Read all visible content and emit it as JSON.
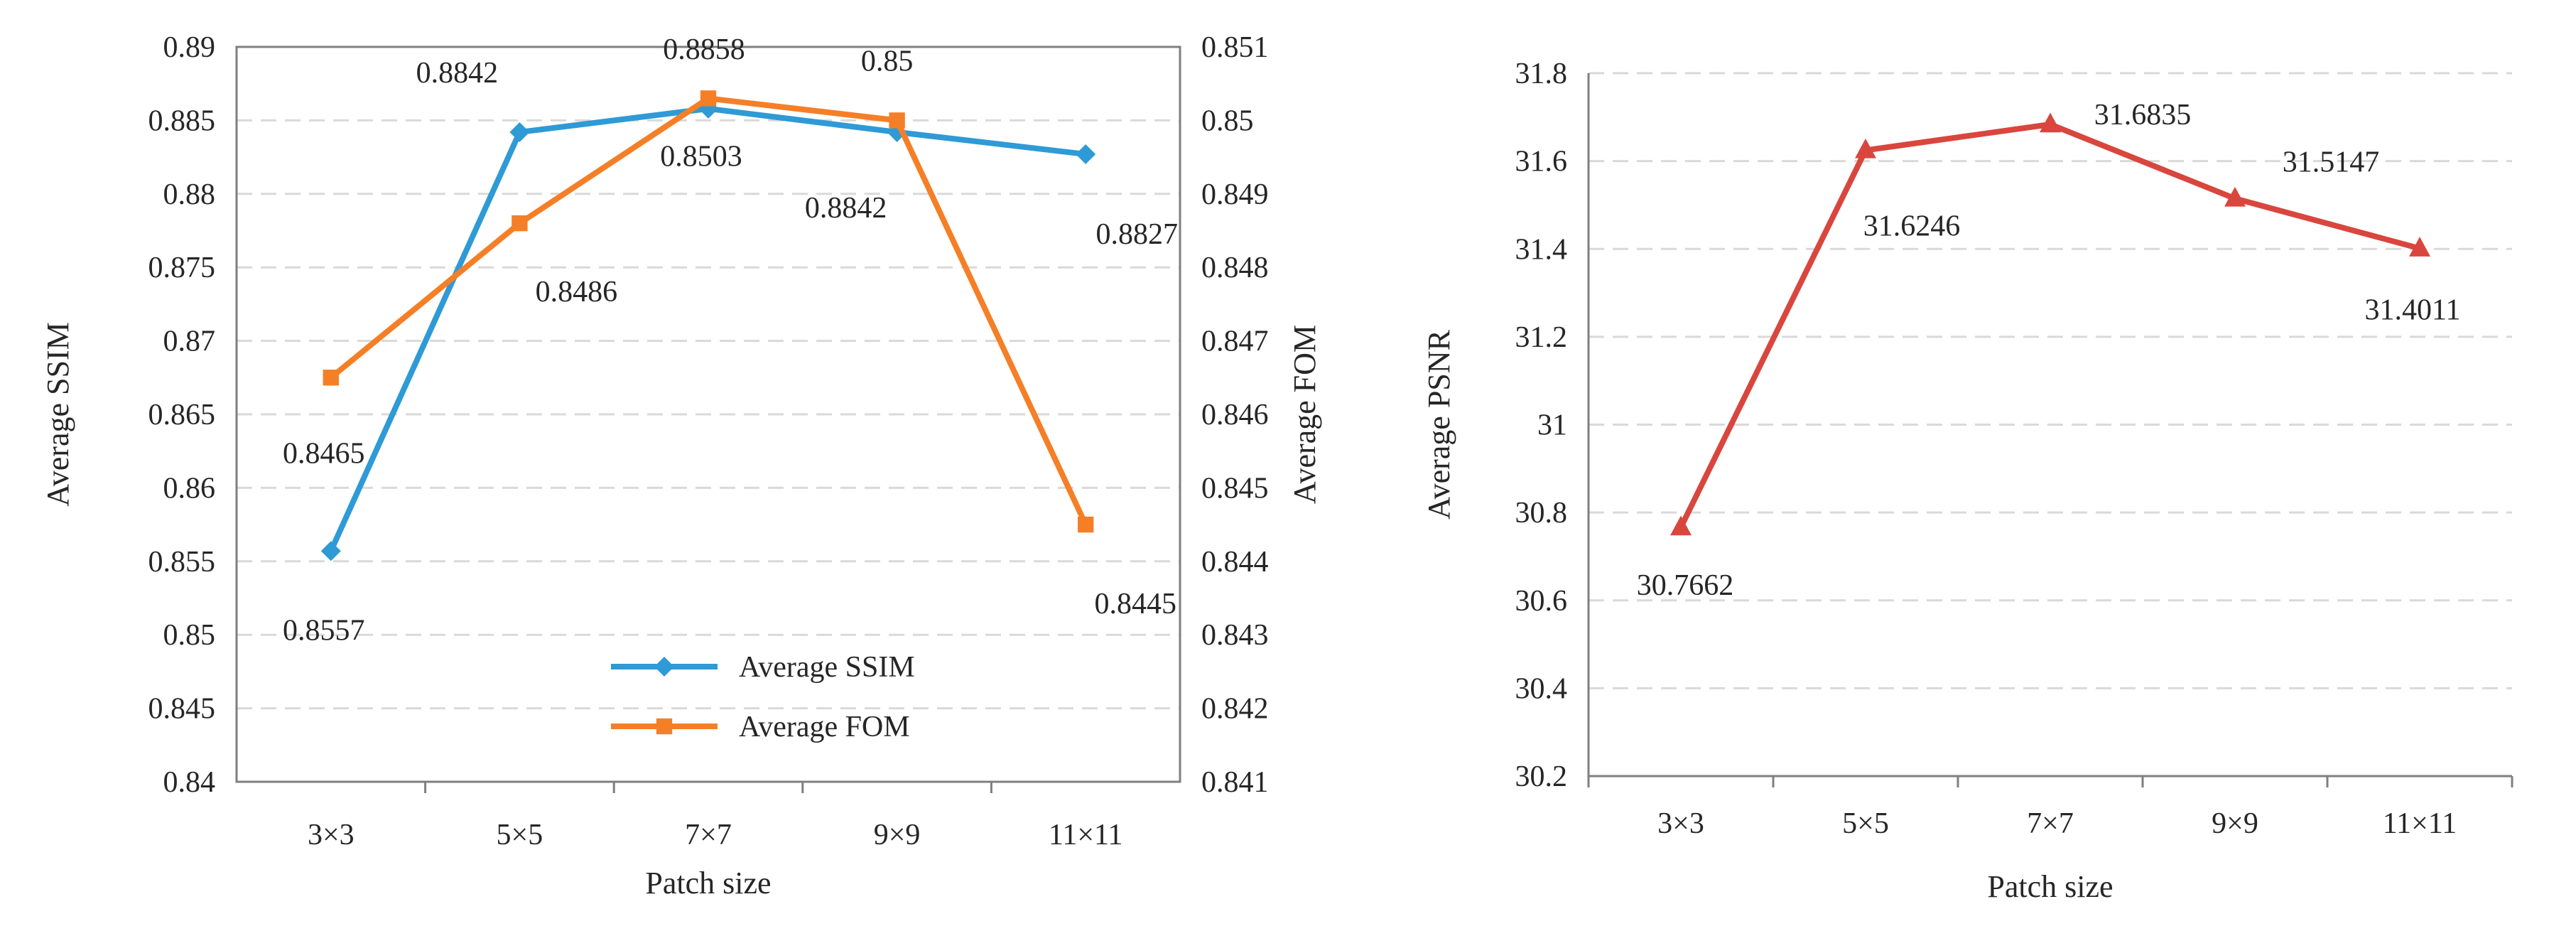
{
  "chart_data": [
    {
      "type": "line",
      "categories": [
        "3×3",
        "5×5",
        "7×7",
        "9×9",
        "11×11"
      ],
      "xlabel": "Patch size",
      "ylabel": "Average SSIM",
      "y2label": "Average FOM",
      "ylim": [
        0.84,
        0.89
      ],
      "y2lim": [
        0.841,
        0.851
      ],
      "yticks": [
        "0.84",
        "0.845",
        "0.85",
        "0.855",
        "0.86",
        "0.865",
        "0.87",
        "0.875",
        "0.88",
        "0.885",
        "0.89"
      ],
      "y2ticks": [
        "0.841",
        "0.842",
        "0.843",
        "0.844",
        "0.845",
        "0.846",
        "0.847",
        "0.848",
        "0.849",
        "0.85",
        "0.851"
      ],
      "grid": true,
      "legend_position": "bottom-center",
      "series": [
        {
          "name": "Average SSIM",
          "axis": "left",
          "marker": "diamond",
          "color": "#2E9AD6",
          "values": [
            0.8557,
            0.8842,
            0.8858,
            0.8842,
            0.8827
          ],
          "labels": [
            "0.8557",
            "0.8842",
            "0.8858",
            "0.8842",
            "0.8827"
          ]
        },
        {
          "name": "Average FOM",
          "axis": "right",
          "marker": "square",
          "color": "#F57F27",
          "values": [
            0.8465,
            0.8486,
            0.8503,
            0.85,
            0.8445
          ],
          "labels": [
            "0.8465",
            "0.8486",
            "0.8503",
            "0.85",
            "0.8445"
          ]
        }
      ]
    },
    {
      "type": "line",
      "categories": [
        "3×3",
        "5×5",
        "7×7",
        "9×9",
        "11×11"
      ],
      "xlabel": "Patch size",
      "ylabel": "Average PSNR",
      "ylim": [
        30.2,
        31.8
      ],
      "yticks": [
        "30.2",
        "30.4",
        "30.6",
        "30.8",
        "31",
        "31.2",
        "31.4",
        "31.6",
        "31.8"
      ],
      "grid": true,
      "series": [
        {
          "name": "Average PSNR",
          "marker": "triangle",
          "color": "#D9463E",
          "values": [
            30.7662,
            31.6246,
            31.6835,
            31.5147,
            31.4011
          ],
          "labels": [
            "30.7662",
            "31.6246",
            "31.6835",
            "31.5147",
            "31.4011"
          ]
        }
      ]
    }
  ]
}
